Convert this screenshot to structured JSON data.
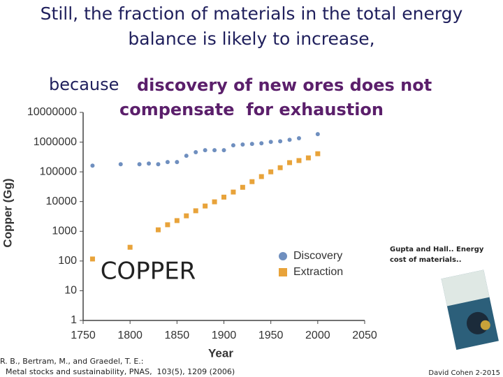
{
  "title_lines": [
    "Still, the fraction of materials in the total energy",
    "balance is likely to increase,"
  ],
  "subtitle": {
    "prefix": "because",
    "emphasis_lines": [
      "discovery of new ores does not",
      "compensate  for exhaustion"
    ]
  },
  "chart_data": {
    "type": "scatter",
    "xlabel": "Year",
    "ylabel": "Copper (Gg)",
    "annotation": "COPPER",
    "xlim": [
      1750,
      2050
    ],
    "xticks": [
      1750,
      1800,
      1850,
      1900,
      1950,
      2000,
      2050
    ],
    "ylim": [
      1,
      10000000
    ],
    "yscale": "log",
    "yticks": [
      1,
      10,
      100,
      1000,
      10000,
      100000,
      1000000,
      10000000
    ],
    "legend": "center-right",
    "series": [
      {
        "name": "Discovery",
        "color": "#6f8fbf",
        "marker": "circle",
        "x": [
          1760,
          1790,
          1810,
          1820,
          1830,
          1840,
          1850,
          1860,
          1870,
          1880,
          1890,
          1900,
          1910,
          1920,
          1930,
          1940,
          1950,
          1960,
          1970,
          1980,
          2000
        ],
        "values": [
          162000,
          180000,
          180000,
          190000,
          180000,
          213000,
          213000,
          347000,
          457000,
          537000,
          537000,
          537000,
          780000,
          830000,
          870000,
          912000,
          1020000,
          1070000,
          1200000,
          1350000,
          1860000
        ]
      },
      {
        "name": "Extraction",
        "color": "#e8a33a",
        "marker": "square",
        "x": [
          1760,
          1800,
          1830,
          1840,
          1850,
          1860,
          1870,
          1880,
          1890,
          1900,
          1910,
          1920,
          1930,
          1940,
          1950,
          1960,
          1970,
          1980,
          1990,
          2000
        ],
        "values": [
          117,
          290,
          1120,
          1660,
          2290,
          3310,
          4900,
          7080,
          9800,
          14100,
          20900,
          30200,
          46800,
          69200,
          100000,
          138000,
          204000,
          240000,
          295000,
          407000
        ]
      }
    ]
  },
  "citation": [
    "R. B., Bertram, M., and Graedel, T. E.:",
    "Metal stocks and sustainability, PNAS,  103(5), 1209 (2006)"
  ],
  "side_note": [
    "Gupta and Hall.. Energy",
    "cost of materials.."
  ],
  "footer": "David Cohen 2-2015"
}
